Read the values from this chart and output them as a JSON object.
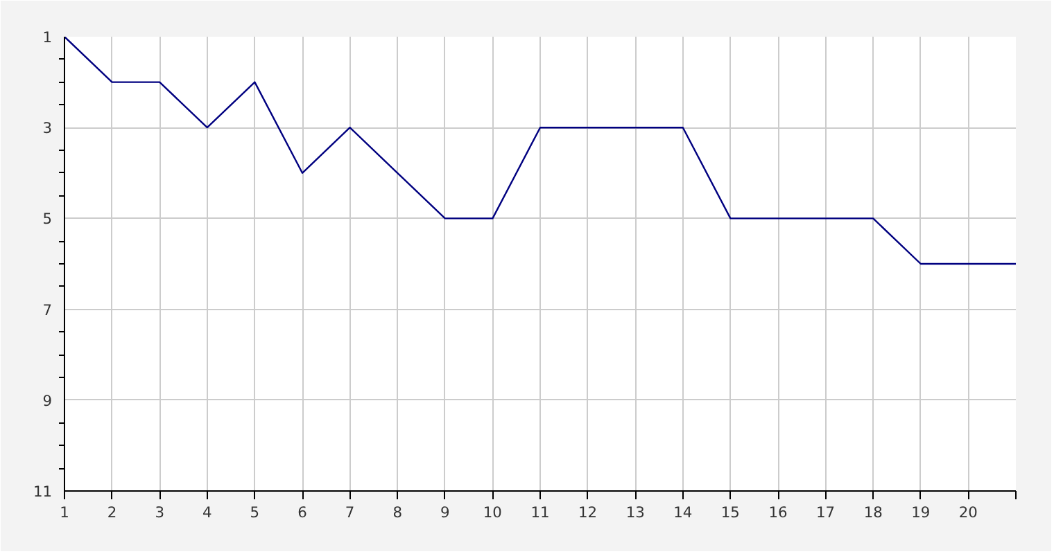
{
  "chart_data": {
    "type": "line",
    "x": [
      1,
      2,
      3,
      4,
      5,
      6,
      7,
      8,
      9,
      10,
      11,
      12,
      13,
      14,
      15,
      16,
      17,
      18,
      19,
      20,
      21
    ],
    "series": [
      {
        "color": "#000080",
        "values": [
          1,
          2,
          2,
          3,
          2,
          4,
          3,
          4,
          5,
          5,
          3,
          3,
          3,
          3,
          5,
          5,
          5,
          5,
          6,
          6,
          6
        ]
      }
    ],
    "xlim": [
      1,
      21
    ],
    "xticks": [
      1,
      2,
      3,
      4,
      5,
      6,
      7,
      8,
      9,
      10,
      11,
      12,
      13,
      14,
      15,
      16,
      17,
      18,
      19,
      20,
      {
        "value": 21,
        "label": null
      }
    ],
    "ylim": [
      11,
      1
    ],
    "yticks": [
      1,
      3,
      5,
      7,
      9,
      11
    ],
    "grid": true,
    "marker": "none",
    "line_style": "solid"
  }
}
